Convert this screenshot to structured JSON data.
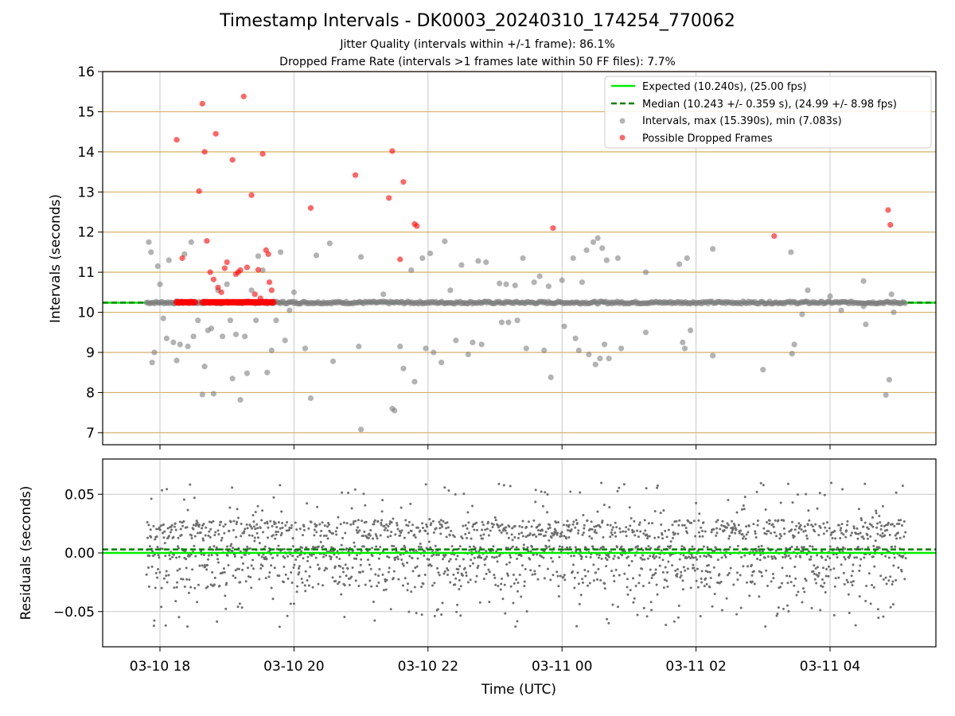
{
  "title": "Timestamp Intervals - DK0003_20240310_174254_770062",
  "subtitle_1": "Jitter Quality (intervals within +/-1 frame): 86.1%",
  "subtitle_2": "Dropped Frame Rate (intervals >1 frames late within 50 FF files): 7.7%",
  "colors": {
    "expected": "#00ee00",
    "median": "#008000",
    "intervals": "#808080",
    "dropped": "#ff0000",
    "hgrid": "#d4b06a",
    "vgrid": "#c8c8c8"
  },
  "chart_data": [
    {
      "type": "scatter",
      "ylabel": "Intervals (seconds)",
      "ylim": [
        6.7,
        16
      ],
      "yticks": [
        "7",
        "8",
        "9",
        "10",
        "11",
        "12",
        "13",
        "14",
        "15",
        "16"
      ],
      "xlim_hours": [
        17.25,
        5.75
      ],
      "x_tick_labels": [
        "03-10 18",
        "03-10 20",
        "03-10 22",
        "03-11 00",
        "03-11 02",
        "03-11 04"
      ],
      "x_tick_hours": [
        18,
        20,
        22,
        24,
        26,
        28
      ],
      "grid": "both",
      "legend_position": "top-right",
      "legend": [
        "Expected (10.240s), (25.00 fps)",
        "Median (10.243 +/- 0.359 s), (24.99 +/- 8.98 fps)",
        "Intervals, max (15.390s), min (7.083s)",
        "Possible Dropped Frames"
      ],
      "expected_line": 10.24,
      "median_line": 10.243,
      "series": [
        {
          "name": "Intervals, max (15.390s), min (7.083s)",
          "points": [
            [
              "03-10 17:50",
              11.75
            ],
            [
              "03-10 17:52",
              11.5
            ],
            [
              "03-10 17:53",
              8.75
            ],
            [
              "03-10 17:55",
              9.0
            ],
            [
              "03-10 17:58",
              11.15
            ],
            [
              "03-10 18:00",
              10.7
            ],
            [
              "03-10 18:03",
              9.85
            ],
            [
              "03-10 18:06",
              9.35
            ],
            [
              "03-10 18:08",
              11.3
            ],
            [
              "03-10 18:12",
              9.25
            ],
            [
              "03-10 18:15",
              8.8
            ],
            [
              "03-10 18:18",
              9.2
            ],
            [
              "03-10 18:22",
              11.45
            ],
            [
              "03-10 18:25",
              9.15
            ],
            [
              "03-10 18:28",
              11.75
            ],
            [
              "03-10 18:30",
              9.4
            ],
            [
              "03-10 18:34",
              9.8
            ],
            [
              "03-10 18:38",
              7.95
            ],
            [
              "03-10 18:40",
              8.65
            ],
            [
              "03-10 18:43",
              9.55
            ],
            [
              "03-10 18:46",
              9.6
            ],
            [
              "03-10 18:48",
              7.97
            ],
            [
              "03-10 18:52",
              10.55
            ],
            [
              "03-10 18:56",
              9.4
            ],
            [
              "03-10 19:00",
              10.7
            ],
            [
              "03-10 19:03",
              9.8
            ],
            [
              "03-10 19:05",
              8.35
            ],
            [
              "03-10 19:08",
              9.45
            ],
            [
              "03-10 19:12",
              7.82
            ],
            [
              "03-10 19:16",
              9.4
            ],
            [
              "03-10 19:18",
              8.48
            ],
            [
              "03-10 19:22",
              10.55
            ],
            [
              "03-10 19:26",
              9.8
            ],
            [
              "03-10 19:28",
              11.4
            ],
            [
              "03-10 19:32",
              11.05
            ],
            [
              "03-10 19:36",
              8.5
            ],
            [
              "03-10 19:40",
              9.05
            ],
            [
              "03-10 19:44",
              9.8
            ],
            [
              "03-10 19:48",
              11.5
            ],
            [
              "03-10 19:52",
              9.3
            ],
            [
              "03-10 19:56",
              10.05
            ],
            [
              "03-10 20:00",
              10.5
            ],
            [
              "03-10 20:10",
              9.1
            ],
            [
              "03-10 20:15",
              7.86
            ],
            [
              "03-10 20:20",
              11.42
            ],
            [
              "03-10 20:32",
              11.72
            ],
            [
              "03-10 20:35",
              8.78
            ],
            [
              "03-10 20:58",
              9.15
            ],
            [
              "03-10 21:00",
              11.38
            ],
            [
              "03-10 21:00",
              7.08
            ],
            [
              "03-10 21:20",
              10.45
            ],
            [
              "03-10 21:28",
              7.6
            ],
            [
              "03-10 21:30",
              7.55
            ],
            [
              "03-10 21:35",
              9.15
            ],
            [
              "03-10 21:38",
              8.6
            ],
            [
              "03-10 21:45",
              11.05
            ],
            [
              "03-10 21:48",
              8.27
            ],
            [
              "03-10 21:55",
              11.35
            ],
            [
              "03-10 21:58",
              9.1
            ],
            [
              "03-10 22:02",
              11.47
            ],
            [
              "03-10 22:05",
              9.0
            ],
            [
              "03-10 22:12",
              8.75
            ],
            [
              "03-10 22:15",
              11.77
            ],
            [
              "03-10 22:20",
              10.55
            ],
            [
              "03-10 22:25",
              9.3
            ],
            [
              "03-10 22:30",
              11.18
            ],
            [
              "03-10 22:36",
              8.95
            ],
            [
              "03-10 22:40",
              9.25
            ],
            [
              "03-10 22:45",
              11.28
            ],
            [
              "03-10 22:48",
              9.2
            ],
            [
              "03-10 22:52",
              11.25
            ],
            [
              "03-10 23:04",
              10.72
            ],
            [
              "03-10 23:06",
              9.75
            ],
            [
              "03-10 23:10",
              10.7
            ],
            [
              "03-10 23:12",
              9.75
            ],
            [
              "03-10 23:18",
              10.67
            ],
            [
              "03-10 23:20",
              9.8
            ],
            [
              "03-10 23:25",
              11.35
            ],
            [
              "03-10 23:28",
              9.1
            ],
            [
              "03-10 23:35",
              10.75
            ],
            [
              "03-10 23:40",
              10.9
            ],
            [
              "03-10 23:44",
              9.05
            ],
            [
              "03-10 23:48",
              10.65
            ],
            [
              "03-10 23:50",
              8.38
            ],
            [
              "03-11 00:00",
              10.8
            ],
            [
              "03-11 00:02",
              9.65
            ],
            [
              "03-11 00:10",
              11.35
            ],
            [
              "03-11 00:12",
              9.35
            ],
            [
              "03-11 00:15",
              9.05
            ],
            [
              "03-11 00:18",
              10.75
            ],
            [
              "03-11 00:22",
              11.55
            ],
            [
              "03-11 00:24",
              8.95
            ],
            [
              "03-11 00:28",
              11.75
            ],
            [
              "03-11 00:30",
              8.7
            ],
            [
              "03-11 00:32",
              11.85
            ],
            [
              "03-11 00:34",
              8.85
            ],
            [
              "03-11 00:36",
              11.6
            ],
            [
              "03-11 00:38",
              9.2
            ],
            [
              "03-11 00:40",
              11.3
            ],
            [
              "03-11 00:42",
              8.85
            ],
            [
              "03-11 00:50",
              11.35
            ],
            [
              "03-11 00:53",
              9.1
            ],
            [
              "03-11 01:15",
              11.0
            ],
            [
              "03-11 01:15",
              9.5
            ],
            [
              "03-11 01:45",
              11.2
            ],
            [
              "03-11 01:48",
              9.25
            ],
            [
              "03-11 01:50",
              9.1
            ],
            [
              "03-11 01:52",
              11.35
            ],
            [
              "03-11 01:55",
              9.55
            ],
            [
              "03-11 02:15",
              11.58
            ],
            [
              "03-11 02:15",
              8.92
            ],
            [
              "03-11 03:00",
              8.57
            ],
            [
              "03-11 03:25",
              11.5
            ],
            [
              "03-11 03:26",
              8.97
            ],
            [
              "03-11 03:28",
              9.2
            ],
            [
              "03-11 03:35",
              9.95
            ],
            [
              "03-11 03:40",
              10.55
            ],
            [
              "03-11 04:00",
              10.4
            ],
            [
              "03-11 04:10",
              10.05
            ],
            [
              "03-11 04:30",
              10.15
            ],
            [
              "03-11 04:30",
              10.78
            ],
            [
              "03-11 04:32",
              9.7
            ],
            [
              "03-11 04:50",
              7.94
            ],
            [
              "03-11 04:53",
              8.32
            ],
            [
              "03-11 04:55",
              10.45
            ],
            [
              "03-11 04:57",
              10.0
            ]
          ]
        },
        {
          "name": "Possible Dropped Frames",
          "points": [
            [
              "03-10 18:15",
              14.3
            ],
            [
              "03-10 18:20",
              11.35
            ],
            [
              "03-10 18:35",
              13.02
            ],
            [
              "03-10 18:38",
              15.2
            ],
            [
              "03-10 18:40",
              14.0
            ],
            [
              "03-10 18:42",
              11.78
            ],
            [
              "03-10 18:45",
              11.0
            ],
            [
              "03-10 18:48",
              10.82
            ],
            [
              "03-10 18:50",
              14.45
            ],
            [
              "03-10 18:52",
              10.62
            ],
            [
              "03-10 18:55",
              10.5
            ],
            [
              "03-10 18:58",
              11.1
            ],
            [
              "03-10 19:00",
              11.25
            ],
            [
              "03-10 19:05",
              13.8
            ],
            [
              "03-10 19:08",
              10.95
            ],
            [
              "03-10 19:10",
              11.0
            ],
            [
              "03-10 19:12",
              11.05
            ],
            [
              "03-10 19:15",
              15.38
            ],
            [
              "03-10 19:18",
              11.12
            ],
            [
              "03-10 19:22",
              12.92
            ],
            [
              "03-10 19:25",
              10.45
            ],
            [
              "03-10 19:28",
              11.06
            ],
            [
              "03-10 19:30",
              10.35
            ],
            [
              "03-10 19:32",
              13.95
            ],
            [
              "03-10 19:35",
              11.55
            ],
            [
              "03-10 19:37",
              11.45
            ],
            [
              "03-10 19:38",
              10.75
            ],
            [
              "03-10 19:40",
              10.55
            ],
            [
              "03-10 20:15",
              12.6
            ],
            [
              "03-10 20:55",
              13.42
            ],
            [
              "03-10 21:25",
              12.85
            ],
            [
              "03-10 21:28",
              14.02
            ],
            [
              "03-10 21:35",
              11.32
            ],
            [
              "03-10 21:38",
              13.25
            ],
            [
              "03-10 21:48",
              12.2
            ],
            [
              "03-10 21:50",
              12.15
            ],
            [
              "03-10 23:52",
              12.1
            ],
            [
              "03-11 03:10",
              11.9
            ],
            [
              "03-11 04:52",
              12.55
            ],
            [
              "03-11 04:54",
              12.18
            ],
            [
              "03-10 18:20",
              10.25
            ],
            [
              "03-10 18:25",
              10.25
            ],
            [
              "03-10 18:40",
              10.25
            ],
            [
              "03-10 18:50",
              10.25
            ],
            [
              "03-10 19:00",
              10.25
            ],
            [
              "03-10 19:10",
              10.25
            ],
            [
              "03-10 19:15",
              10.25
            ],
            [
              "03-10 19:20",
              10.25
            ],
            [
              "03-10 19:35",
              10.25
            ],
            [
              "03-10 19:40",
              10.25
            ]
          ]
        }
      ]
    },
    {
      "type": "scatter",
      "ylabel": "Residuals (seconds)",
      "xlabel": "Time (UTC)",
      "ylim": [
        -0.08,
        0.08
      ],
      "yticks": [
        "−0.05",
        "0.00",
        "0.05"
      ],
      "ytick_values": [
        -0.05,
        0.0,
        0.05
      ],
      "x_tick_labels": [
        "03-10 18",
        "03-10 20",
        "03-10 22",
        "03-11 00",
        "03-11 02",
        "03-11 04"
      ],
      "expected_line": 0.0,
      "median_line": 0.003,
      "residual_clusters": [
        0.02,
        0.0,
        -0.02
      ],
      "residual_range": [
        -0.075,
        0.075
      ],
      "time_range": [
        "03-10 17:48",
        "03-11 05:08"
      ]
    }
  ]
}
